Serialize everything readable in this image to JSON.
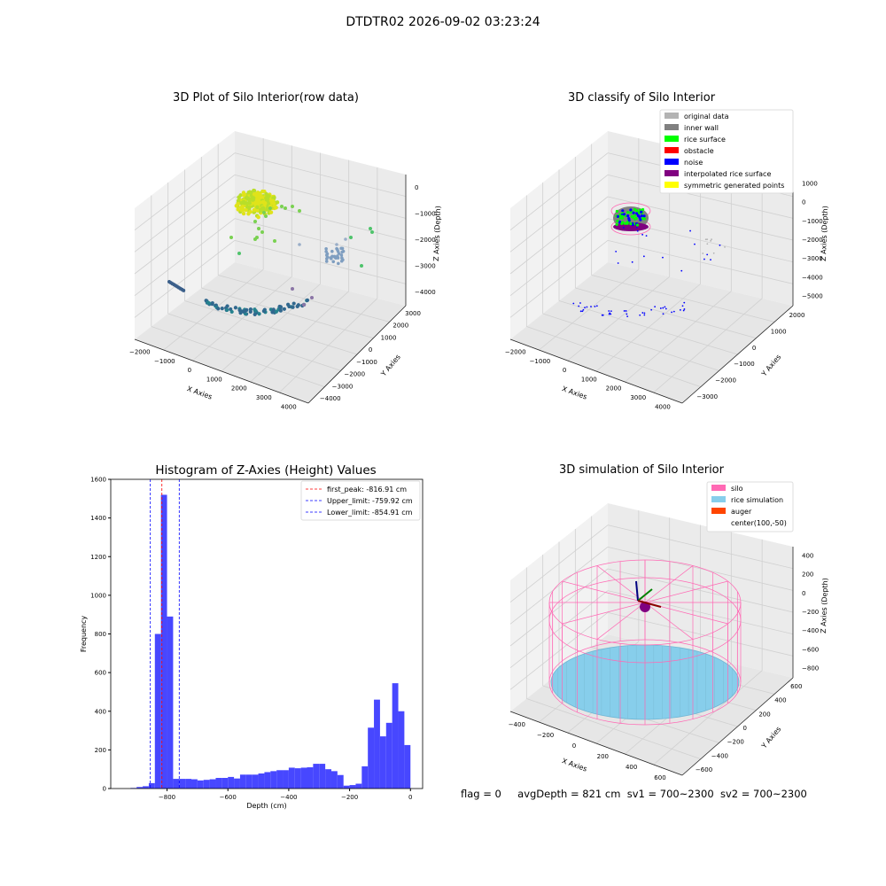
{
  "suptitle": "DTDTR02 2026-09-02 03:23:24",
  "panels": {
    "raw": {
      "title": "3D Plot of Silo Interior(row data)",
      "xlabel": "X Axies",
      "ylabel": "Y Axies",
      "zlabel": "Z Axies (Depth)",
      "xticks": [
        "−2000",
        "−1000",
        "0",
        "1000",
        "2000",
        "3000",
        "4000"
      ],
      "yticks": [
        "−4000",
        "−3000",
        "−2000",
        "−1000",
        "0",
        "1000",
        "2000",
        "3000"
      ],
      "zticks": [
        "0",
        "−1000",
        "−2000",
        "−3000",
        "−4000"
      ]
    },
    "classify": {
      "title": "3D classify of Silo Interior",
      "xlabel": "X Axies",
      "ylabel": "Y Axies",
      "zlabel": "Z Axies (Depth)",
      "xticks": [
        "−2000",
        "−1000",
        "0",
        "1000",
        "2000",
        "3000",
        "4000"
      ],
      "yticks": [
        "−3000",
        "−2000",
        "−1000",
        "0",
        "1000",
        "2000"
      ],
      "zticks": [
        "1000",
        "0",
        "−1000",
        "−2000",
        "−3000",
        "−4000",
        "−5000"
      ],
      "legend": [
        {
          "label": "original data",
          "color": "#b3b3b3"
        },
        {
          "label": "inner wall",
          "color": "#808080"
        },
        {
          "label": "rice surface",
          "color": "#00ff00"
        },
        {
          "label": "obstacle",
          "color": "#ff0000"
        },
        {
          "label": "noise",
          "color": "#0000ff"
        },
        {
          "label": "interpolated rice surface",
          "color": "#800080"
        },
        {
          "label": "symmetric generated points",
          "color": "#ffff00"
        }
      ]
    },
    "simulation": {
      "title": "3D simulation of Silo Interior",
      "xlabel": "X Axies",
      "ylabel": "Y Axies",
      "zlabel": "Z Axies (Depth)",
      "xticks": [
        "−400",
        "−200",
        "0",
        "200",
        "400",
        "600"
      ],
      "yticks": [
        "−600",
        "−400",
        "−200",
        "0",
        "200",
        "400",
        "600"
      ],
      "zticks": [
        "400",
        "200",
        "0",
        "−200",
        "−400",
        "−600",
        "−800"
      ],
      "legend": [
        {
          "label": "silo",
          "color": "#ff69b4"
        },
        {
          "label": "rice simulation",
          "color": "#87ceeb"
        },
        {
          "label": "auger",
          "color": "#ff4500"
        },
        {
          "label": "center(100,-50)",
          "color": ""
        }
      ]
    }
  },
  "status": {
    "flag": "flag = 0",
    "avg_depth": "avgDepth = 821 cm",
    "sv1": "sv1 = 700~2300",
    "sv2": "sv2 = 700~2300"
  },
  "chart_data": {
    "type": "bar",
    "title": "Histogram of Z-Axies (Height) Values",
    "xlabel": "Depth (cm)",
    "ylabel": "Frequency",
    "xlim": [
      -985,
      40
    ],
    "ylim": [
      0,
      1600
    ],
    "xticks": [
      -800,
      -600,
      -400,
      -200,
      0
    ],
    "yticks": [
      0,
      200,
      400,
      600,
      800,
      1000,
      1200,
      1400,
      1600
    ],
    "bin_width": 20,
    "bin_starts": [
      -920,
      -900,
      -880,
      -860,
      -840,
      -820,
      -800,
      -780,
      -760,
      -740,
      -720,
      -700,
      -680,
      -660,
      -640,
      -620,
      -600,
      -580,
      -560,
      -540,
      -520,
      -500,
      -480,
      -460,
      -440,
      -420,
      -400,
      -380,
      -360,
      -340,
      -320,
      -300,
      -280,
      -260,
      -240,
      -220,
      -200,
      -180,
      -160,
      -140,
      -120,
      -100,
      -80,
      -60,
      -40,
      -20
    ],
    "values": [
      3,
      8,
      12,
      28,
      800,
      1520,
      890,
      50,
      50,
      50,
      48,
      42,
      45,
      48,
      55,
      55,
      60,
      52,
      72,
      72,
      72,
      78,
      85,
      90,
      95,
      95,
      108,
      105,
      108,
      110,
      128,
      128,
      100,
      90,
      70,
      15,
      18,
      25,
      115,
      315,
      460,
      270,
      340,
      545,
      400,
      225
    ],
    "lines": [
      {
        "name": "first_peak: -816.91 cm",
        "x": -816.91,
        "color": "#ff0000"
      },
      {
        "name": "Upper_limit: -759.92 cm",
        "x": -759.92,
        "color": "#0000ff"
      },
      {
        "name": "Lower_limit: -854.91 cm",
        "x": -854.91,
        "color": "#0000ff"
      }
    ],
    "bar_color": "#4747ff",
    "legend_position": "top-right"
  }
}
